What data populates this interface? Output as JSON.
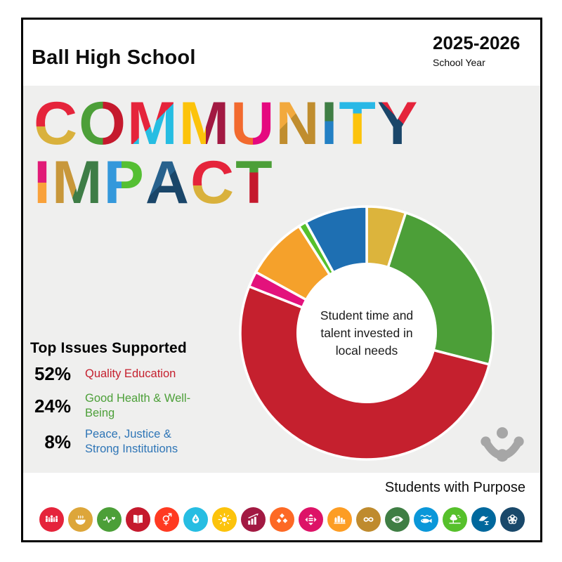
{
  "header": {
    "school": "Ball High School",
    "year": "2025-2026",
    "year_label": "School Year"
  },
  "title": {
    "lines": [
      [
        {
          "ch": "C",
          "dir": "to bottom",
          "stop": 55,
          "c1": "#e5243b",
          "c2": "#d9b13c"
        },
        {
          "ch": "O",
          "dir": "to right",
          "stop": 50,
          "c1": "#4c9f38",
          "c2": "#c5192d"
        },
        {
          "ch": "M",
          "dir": "135deg",
          "stop": 50,
          "c1": "#e5243b",
          "c2": "#26bde2"
        },
        {
          "ch": "M",
          "dir": "to right",
          "stop": 52,
          "c1": "#fcc30b",
          "c2": "#a21942"
        },
        {
          "ch": "U",
          "dir": "to right",
          "stop": 50,
          "c1": "#f26a2e",
          "c2": "#e5097f"
        },
        {
          "ch": "N",
          "dir": "135deg",
          "stop": 38,
          "c1": "#f2a93d",
          "c2": "#c08d2e"
        },
        {
          "ch": "I",
          "dir": "to bottom",
          "stop": 46,
          "c1": "#3f7e44",
          "c2": "#2380c4"
        },
        {
          "ch": "T",
          "dir": "to bottom",
          "stop": 33,
          "c1": "#29b8e6",
          "c2": "#fcc30b"
        },
        {
          "ch": "Y",
          "dir": "45deg",
          "stop": 55,
          "c1": "#1a4669",
          "c2": "#e5243b"
        }
      ],
      [
        {
          "ch": "I",
          "dir": "to bottom",
          "stop": 50,
          "c1": "#e11a77",
          "c2": "#f9a13a"
        },
        {
          "ch": "M",
          "dir": "110deg",
          "stop": 50,
          "c1": "#c8973a",
          "c2": "#3e7d46"
        },
        {
          "ch": "P",
          "dir": "to right",
          "stop": 42,
          "c1": "#3498db",
          "c2": "#55bf33"
        },
        {
          "ch": "A",
          "dir": "135deg",
          "stop": 45,
          "c1": "#27618d",
          "c2": "#1a4669"
        },
        {
          "ch": "C",
          "dir": "to bottom",
          "stop": 55,
          "c1": "#e5243b",
          "c2": "#d9b13c"
        },
        {
          "ch": "T",
          "dir": "to bottom",
          "stop": 33,
          "c1": "#4c9f38",
          "c2": "#c5192d"
        }
      ]
    ]
  },
  "chart_data": {
    "type": "pie",
    "subtype": "donut",
    "direction": "clockwise",
    "start_angle_deg_from_top": 0,
    "inner_radius_ratio": 0.54,
    "center_label_lines": [
      "Student time and",
      "talent invested in",
      "local needs"
    ],
    "slices": [
      {
        "label": "",
        "value": 5,
        "color": "#dcb43c"
      },
      {
        "label": "Good Health & Well-Being",
        "value": 24,
        "color": "#4c9f38"
      },
      {
        "label": "Quality Education",
        "value": 52,
        "color": "#c5202e"
      },
      {
        "label": "",
        "value": 2,
        "color": "#e3127c"
      },
      {
        "label": "",
        "value": 8,
        "color": "#f5a12b"
      },
      {
        "label": "",
        "value": 1,
        "color": "#56c02b"
      },
      {
        "label": "Peace, Justice & Strong Institutions",
        "value": 8,
        "color": "#1e6fb2"
      }
    ]
  },
  "issues": {
    "heading": "Top Issues Supported",
    "items": [
      {
        "pct": "52%",
        "label": "Quality Education",
        "color": "#c5202e"
      },
      {
        "pct": "24%",
        "label": "Good Health & Well-Being",
        "color": "#4c9f38"
      },
      {
        "pct": "8%",
        "label": "Peace, Justice & Strong Institutions",
        "color": "#2e75b6"
      }
    ]
  },
  "footer": {
    "tagline": "Students with Purpose"
  },
  "logo": {
    "name": "students-with-purpose-logo",
    "color": "#a6a6a6"
  },
  "sdg_icons": [
    {
      "name": "no-poverty",
      "color": "#e5243b"
    },
    {
      "name": "zero-hunger",
      "color": "#dda63a"
    },
    {
      "name": "good-health-and-well-being",
      "color": "#4c9f38"
    },
    {
      "name": "quality-education",
      "color": "#c5192d"
    },
    {
      "name": "gender-equality",
      "color": "#ff3a21"
    },
    {
      "name": "clean-water-and-sanitation",
      "color": "#26bde2"
    },
    {
      "name": "affordable-and-clean-energy",
      "color": "#fcc30b"
    },
    {
      "name": "decent-work-and-economic-growth",
      "color": "#a21942"
    },
    {
      "name": "industry-innovation-and-infrastructure",
      "color": "#fd6925"
    },
    {
      "name": "reduced-inequalities",
      "color": "#dd1367"
    },
    {
      "name": "sustainable-cities-and-communities",
      "color": "#fd9d24"
    },
    {
      "name": "responsible-consumption-and-production",
      "color": "#bf8b2e"
    },
    {
      "name": "climate-action",
      "color": "#3f7e44"
    },
    {
      "name": "life-below-water",
      "color": "#0a97d9"
    },
    {
      "name": "life-on-land",
      "color": "#56c02b"
    },
    {
      "name": "peace-justice-and-strong-institutions",
      "color": "#00689d"
    },
    {
      "name": "partnerships-for-the-goals",
      "color": "#19486a"
    }
  ]
}
